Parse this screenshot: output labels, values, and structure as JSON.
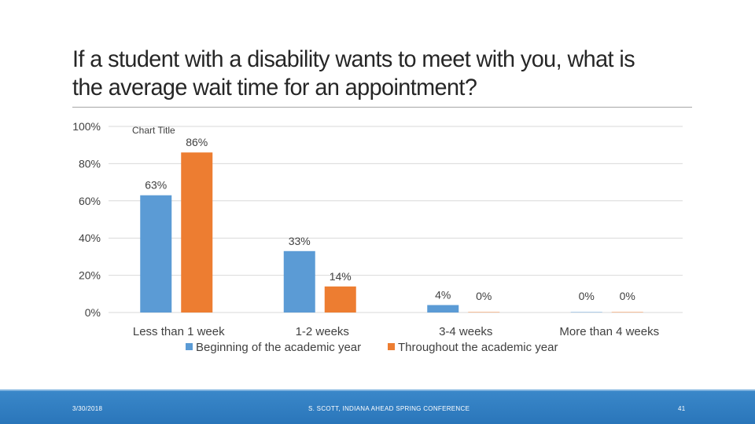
{
  "slide": {
    "title": "If a student with a disability wants to meet with you, what is the average wait time for an appointment?"
  },
  "chart_data": {
    "type": "bar",
    "title": "Chart Title",
    "categories": [
      "Less than 1 week",
      "1-2 weeks",
      "3-4 weeks",
      "More than 4 weeks"
    ],
    "series": [
      {
        "name": "Beginning of the academic year",
        "values": [
          63,
          33,
          4,
          0
        ],
        "labels": [
          "63%",
          "33%",
          "4%",
          "0%"
        ]
      },
      {
        "name": "Throughout the academic year",
        "values": [
          86,
          14,
          0,
          0
        ],
        "labels": [
          "86%",
          "14%",
          "0%",
          "0%"
        ]
      }
    ],
    "ylim": [
      0,
      100
    ],
    "yticks": [
      {
        "value": 0,
        "label": "0%"
      },
      {
        "value": 20,
        "label": "20%"
      },
      {
        "value": 40,
        "label": "40%"
      },
      {
        "value": 60,
        "label": "60%"
      },
      {
        "value": 80,
        "label": "80%"
      },
      {
        "value": 100,
        "label": "100%"
      }
    ],
    "colors": [
      "#5b9bd5",
      "#ed7d31"
    ],
    "grid": true,
    "legend": "bottom",
    "xlabel": "",
    "ylabel": ""
  },
  "footer": {
    "date": "3/30/2018",
    "center": "S. SCOTT, INDIANA AHEAD SPRING CONFERENCE",
    "page": "41"
  }
}
